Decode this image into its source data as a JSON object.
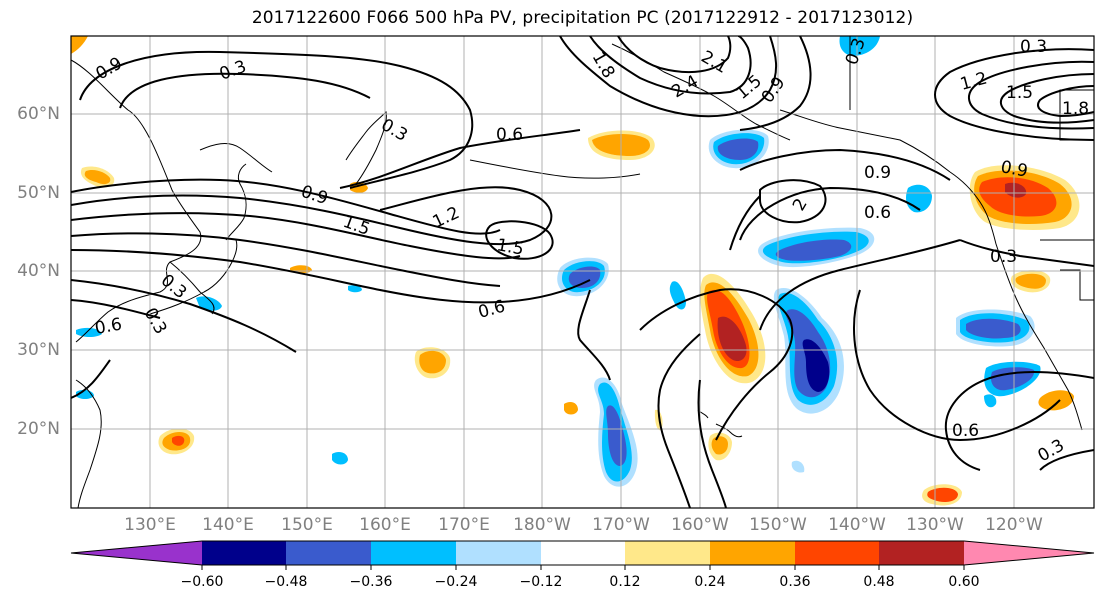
{
  "title": "2017122600 F066 500 hPa PV, precipitation PC (2017122912 - 2017123012)",
  "lat_labels": [
    "60°N",
    "50°N",
    "40°N",
    "30°N",
    "20°N"
  ],
  "lon_labels": [
    "130°E",
    "140°E",
    "150°E",
    "160°E",
    "170°E",
    "180°W",
    "170°W",
    "160°W",
    "150°W",
    "140°W",
    "130°W",
    "120°W"
  ],
  "colorbar": {
    "ticks": [
      "−0.60",
      "−0.48",
      "−0.36",
      "−0.24",
      "−0.12",
      "0.12",
      "0.24",
      "0.36",
      "0.48",
      "0.60"
    ],
    "colors": [
      "#9932cc",
      "#00008b",
      "#3a5bcd",
      "#00bfff",
      "#b0e0ff",
      "#ffffff",
      "#ffe88a",
      "#ffa500",
      "#ff4500",
      "#b22222",
      "#ff88b0"
    ]
  },
  "contour_labels": [
    "0.9",
    "0.3",
    "0.3",
    "0.6",
    "0.9",
    "1.5",
    "1.2",
    "1.5",
    "0.3",
    "0.6",
    "1.8",
    "2.4",
    "2.1",
    "1.5",
    "0.9",
    "0.9",
    "0.6",
    "2",
    "0.3",
    "1.2",
    "1.5",
    "1.8",
    "0.9",
    "0.3",
    "0.6",
    "0.3",
    "0.6",
    "0.3",
    "0.3"
  ]
}
